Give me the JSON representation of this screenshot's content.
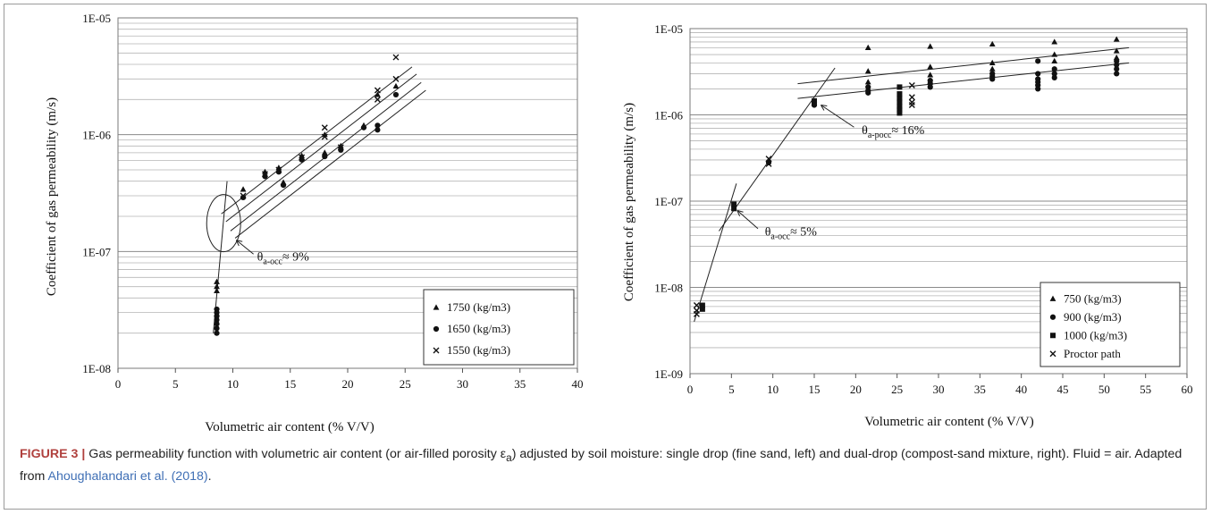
{
  "chart_data": [
    {
      "type": "scatter",
      "id": "left",
      "xlabel": "Volumetric air content (% V/V)",
      "ylabel": "Coefficient of gas permeability (m/s)",
      "xlim": [
        0,
        40
      ],
      "xticks": [
        0,
        5,
        10,
        15,
        20,
        25,
        30,
        35,
        40
      ],
      "ylim": [
        1e-08,
        1e-05
      ],
      "yscale": "log",
      "yticks": [
        1e-08,
        1e-07,
        1e-06,
        1e-05
      ],
      "ytick_labels": [
        "1E-08",
        "1E-07",
        "1E-06",
        "1E-05"
      ],
      "grid": "horizontal-minor",
      "legend_position": "bottom-right",
      "series": [
        {
          "name": "1750 (kg/m3)",
          "marker": "triangle",
          "points": [
            [
              8.6,
              5.5e-08
            ],
            [
              8.6,
              5e-08
            ],
            [
              8.6,
              4.6e-08
            ],
            [
              10.9,
              3.4e-07
            ],
            [
              12.8,
              4.8e-07
            ],
            [
              14,
              5.2e-07
            ],
            [
              14.4,
              3.9e-07
            ],
            [
              16,
              6.6e-07
            ],
            [
              18,
              1e-06
            ],
            [
              18,
              7e-07
            ],
            [
              19.4,
              8e-07
            ],
            [
              21.4,
              1.2e-06
            ],
            [
              22.6,
              2.2e-06
            ],
            [
              24.2,
              2.6e-06
            ]
          ]
        },
        {
          "name": "1650 (kg/m3)",
          "marker": "circle",
          "points": [
            [
              8.6,
              3.2e-08
            ],
            [
              8.6,
              3e-08
            ],
            [
              8.6,
              2.8e-08
            ],
            [
              8.6,
              2.6e-08
            ],
            [
              8.6,
              2.4e-08
            ],
            [
              8.6,
              2.2e-08
            ],
            [
              8.6,
              2e-08
            ],
            [
              10.9,
              2.9e-07
            ],
            [
              12.8,
              4.4e-07
            ],
            [
              14,
              4.8e-07
            ],
            [
              14.4,
              3.7e-07
            ],
            [
              16,
              6.1e-07
            ],
            [
              18,
              6.5e-07
            ],
            [
              19.4,
              7.4e-07
            ],
            [
              21.4,
              1.15e-06
            ],
            [
              22.6,
              1.2e-06
            ],
            [
              22.6,
              1.1e-06
            ],
            [
              24.2,
              2.2e-06
            ]
          ]
        },
        {
          "name": "1550 (kg/m3)",
          "marker": "x",
          "points": [
            [
              10.9,
              3e-07
            ],
            [
              12.8,
              4.6e-07
            ],
            [
              14,
              5e-07
            ],
            [
              16,
              6.4e-07
            ],
            [
              18,
              1.15e-06
            ],
            [
              18,
              9.6e-07
            ],
            [
              19.4,
              7.8e-07
            ],
            [
              22.6,
              2.4e-06
            ],
            [
              22.6,
              2e-06
            ],
            [
              24.2,
              4.6e-06
            ],
            [
              24.2,
              3e-06
            ]
          ]
        }
      ],
      "annotations": [
        {
          "text": "θa-occ ≈ 9%",
          "main": "θ",
          "sub": "a-occ",
          "tail": "≈ 9%",
          "at": [
            10.3,
            1.25e-07
          ]
        }
      ]
    },
    {
      "type": "scatter",
      "id": "right",
      "xlabel": "Volumetric air content (% V/V)",
      "ylabel": "Coefficient of gas permeability (m/s)",
      "xlim": [
        0,
        60
      ],
      "xticks": [
        0,
        5,
        10,
        15,
        20,
        25,
        30,
        35,
        40,
        45,
        50,
        55,
        60
      ],
      "ylim": [
        1e-09,
        1e-05
      ],
      "yscale": "log",
      "yticks": [
        1e-09,
        1e-08,
        1e-07,
        1e-06,
        1e-05
      ],
      "ytick_labels": [
        "1E-09",
        "1E-08",
        "1E-07",
        "1E-06",
        "1E-05"
      ],
      "grid": "horizontal-minor",
      "legend_position": "bottom-right",
      "series": [
        {
          "name": "750 (kg/m3)",
          "marker": "triangle",
          "points": [
            [
              21.5,
              6e-06
            ],
            [
              21.5,
              3.2e-06
            ],
            [
              21.5,
              2.4e-06
            ],
            [
              29,
              6.2e-06
            ],
            [
              29,
              3.6e-06
            ],
            [
              29,
              2.9e-06
            ],
            [
              36.5,
              6.6e-06
            ],
            [
              36.5,
              4e-06
            ],
            [
              36.5,
              3.4e-06
            ],
            [
              44,
              7e-06
            ],
            [
              44,
              5e-06
            ],
            [
              44,
              4.2e-06
            ],
            [
              51.5,
              7.5e-06
            ],
            [
              51.5,
              5.5e-06
            ],
            [
              51.5,
              4.6e-06
            ]
          ]
        },
        {
          "name": "900 (kg/m3)",
          "marker": "circle",
          "points": [
            [
              9.5,
              2.8e-07
            ],
            [
              15,
              1.4e-06
            ],
            [
              15,
              1.3e-06
            ],
            [
              21.5,
              2.1e-06
            ],
            [
              21.5,
              1.9e-06
            ],
            [
              21.5,
              1.8e-06
            ],
            [
              29,
              2.5e-06
            ],
            [
              29,
              2.3e-06
            ],
            [
              29,
              2.1e-06
            ],
            [
              36.5,
              3e-06
            ],
            [
              36.5,
              2.8e-06
            ],
            [
              36.5,
              2.6e-06
            ],
            [
              42,
              4.2e-06
            ],
            [
              42,
              3e-06
            ],
            [
              42,
              2.6e-06
            ],
            [
              42,
              2.4e-06
            ],
            [
              42,
              2.2e-06
            ],
            [
              42,
              2e-06
            ],
            [
              44,
              3.4e-06
            ],
            [
              44,
              3e-06
            ],
            [
              44,
              2.7e-06
            ],
            [
              51.5,
              4.2e-06
            ],
            [
              51.5,
              3.8e-06
            ],
            [
              51.5,
              3.4e-06
            ],
            [
              51.5,
              3e-06
            ]
          ]
        },
        {
          "name": "1000 (kg/m3)",
          "marker": "square",
          "points": [
            [
              1.5,
              6.2e-09
            ],
            [
              1.5,
              5.6e-09
            ],
            [
              5.3,
              9.2e-08
            ],
            [
              5.3,
              8.2e-08
            ],
            [
              15,
              1.45e-06
            ],
            [
              15,
              1.35e-06
            ],
            [
              25.3,
              2.1e-06
            ],
            [
              25.3,
              1.75e-06
            ],
            [
              25.3,
              1.55e-06
            ],
            [
              25.3,
              1.4e-06
            ],
            [
              25.3,
              1.25e-06
            ],
            [
              25.3,
              1.15e-06
            ],
            [
              25.3,
              1.05e-06
            ]
          ]
        },
        {
          "name": "Proctor path",
          "marker": "x",
          "points": [
            [
              0.8,
              6.2e-09
            ],
            [
              0.8,
              5.4e-09
            ],
            [
              0.8,
              4.9e-09
            ],
            [
              9.5,
              3.1e-07
            ],
            [
              9.5,
              2.7e-07
            ],
            [
              26.8,
              2.2e-06
            ],
            [
              26.8,
              1.6e-06
            ],
            [
              26.8,
              1.4e-06
            ],
            [
              26.8,
              1.3e-06
            ]
          ]
        }
      ],
      "annotations": [
        {
          "text": "θa-pocc ≈ 16%",
          "main": "θ",
          "sub": "a-pocc",
          "tail": "≈ 16%",
          "at": [
            15.8,
            1.3e-06
          ]
        },
        {
          "text": "θa-occ ≈ 5%",
          "main": "θ",
          "sub": "a-occ",
          "tail": "≈ 5%",
          "at": [
            5.7,
            7.8e-08
          ]
        }
      ]
    }
  ],
  "caption": {
    "figure_label": "FIGURE 3 |",
    "text_a": " Gas permeability function with volumetric air content (or air-filled porosity ε",
    "subscript": "a",
    "text_b": ") adjusted by soil moisture: single drop (fine sand, left) and dual-drop (compost-sand mixture, right). Fluid = air. Adapted from ",
    "reference": "Ahoughalandari et al. (2018)",
    "text_c": "."
  }
}
